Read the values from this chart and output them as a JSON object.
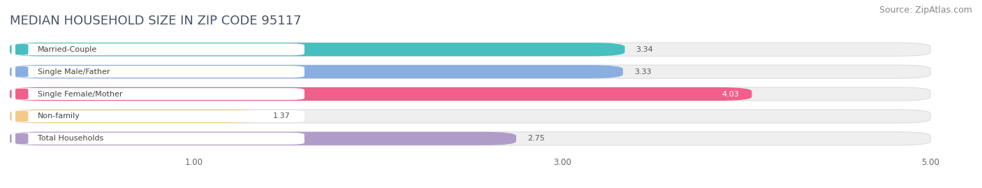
{
  "title": "MEDIAN HOUSEHOLD SIZE IN ZIP CODE 95117",
  "source": "Source: ZipAtlas.com",
  "categories": [
    "Married-Couple",
    "Single Male/Father",
    "Single Female/Mother",
    "Non-family",
    "Total Households"
  ],
  "values": [
    3.34,
    3.33,
    4.03,
    1.37,
    2.75
  ],
  "bar_colors": [
    "#45BFBF",
    "#8AAEE0",
    "#F0608A",
    "#F5C98A",
    "#B09CC8"
  ],
  "label_border_colors": [
    "#45BFBF",
    "#8AAEE0",
    "#F0608A",
    "#F5C98A",
    "#B09CC8"
  ],
  "xlim": [
    0,
    5.2
  ],
  "xmin": 0,
  "xmax": 5.0,
  "xticks": [
    1.0,
    3.0,
    5.0
  ],
  "value_labels": [
    "3.34",
    "3.33",
    "4.03",
    "1.37",
    "2.75"
  ],
  "value_white": [
    false,
    false,
    true,
    false,
    false
  ],
  "background_color": "#ffffff",
  "bar_bg_color": "#efefef",
  "title_fontsize": 13,
  "source_fontsize": 9,
  "label_fontsize": 8,
  "value_fontsize": 8,
  "bar_height": 0.6,
  "bar_gap": 0.4,
  "fig_width": 14.06,
  "fig_height": 2.69
}
